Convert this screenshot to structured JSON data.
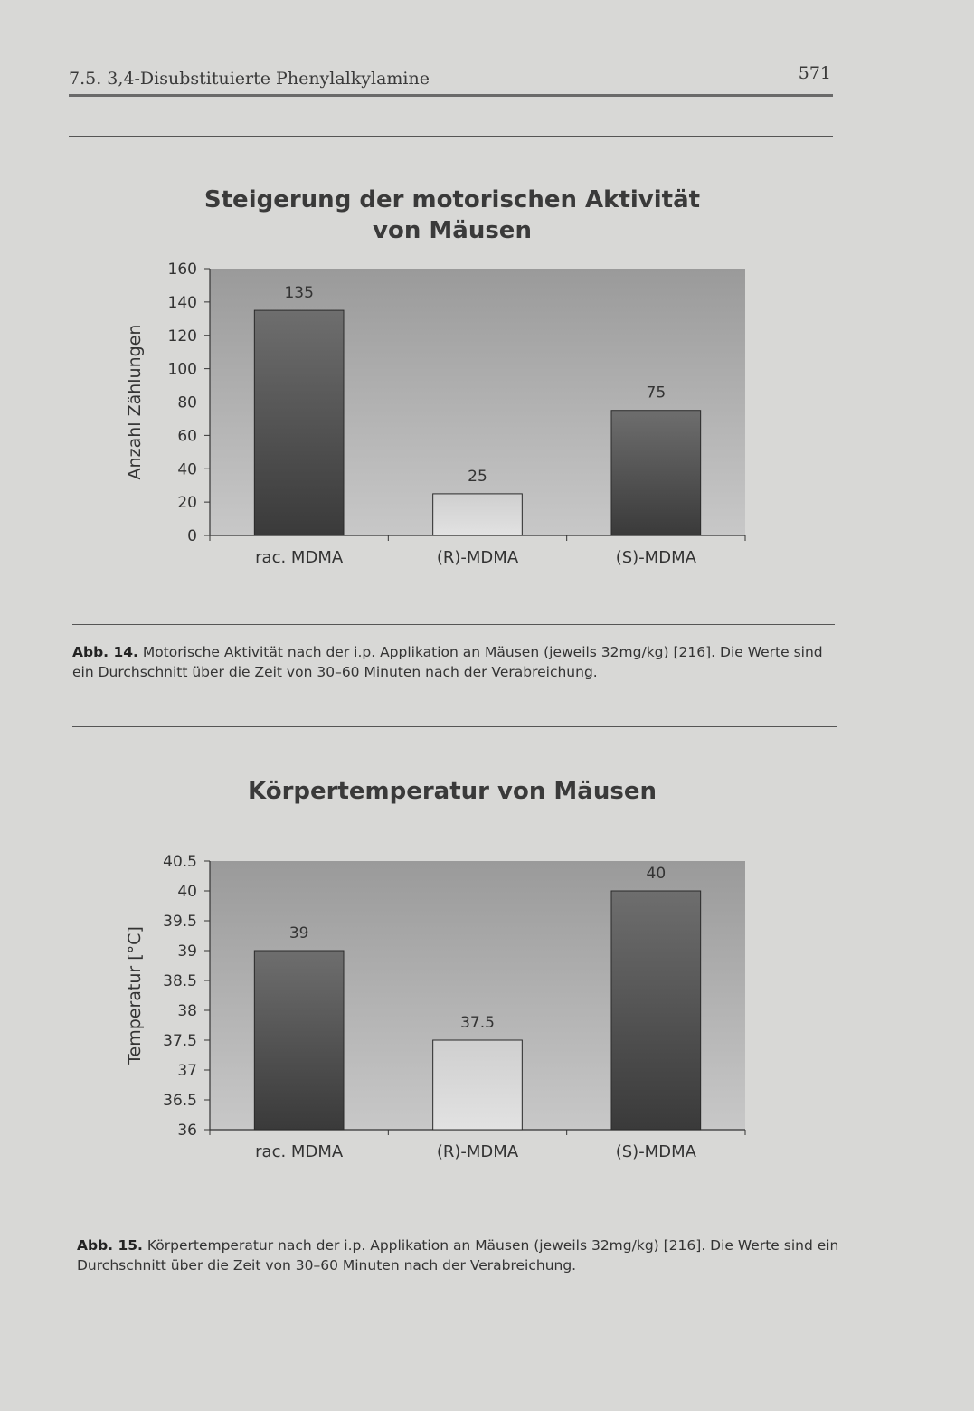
{
  "header": {
    "section": "7.5. 3,4-Disubstituierte Phenylalkylamine",
    "page_number": "571"
  },
  "colors": {
    "bar_dark": "#3a3a3a",
    "bar_light": "#e2e2e2",
    "plot_bg_top": "#9a9a9a",
    "plot_bg_bottom": "#c8c8c8"
  },
  "chart_data": [
    {
      "type": "bar",
      "title_line1": "Steigerung der motorischen Aktivität",
      "title_line2": "von Mäusen",
      "ylabel": "Anzahl Zählungen",
      "xlabel": "",
      "categories": [
        "rac. MDMA",
        "(R)-MDMA",
        "(S)-MDMA"
      ],
      "values": [
        135,
        25,
        75
      ],
      "data_labels": [
        "135",
        "25",
        "75"
      ],
      "ylim": [
        0,
        160
      ],
      "yticks": [
        "0",
        "20",
        "40",
        "60",
        "80",
        "100",
        "120",
        "140",
        "160"
      ],
      "grid": false,
      "legend": "none"
    },
    {
      "type": "bar",
      "title_line1": "Körpertemperatur von Mäusen",
      "ylabel": "Temperatur [°C]",
      "xlabel": "",
      "categories": [
        "rac. MDMA",
        "(R)-MDMA",
        "(S)-MDMA"
      ],
      "values": [
        39,
        37.5,
        40
      ],
      "data_labels": [
        "39",
        "37.5",
        "40"
      ],
      "ylim": [
        36,
        40.5
      ],
      "yticks": [
        "36",
        "36.5",
        "37",
        "37.5",
        "38",
        "38.5",
        "39",
        "39.5",
        "40",
        "40.5"
      ],
      "grid": false,
      "legend": "none"
    }
  ],
  "captions": [
    {
      "label": "Abb. 14.",
      "text": "Motorische Aktivität nach der i.p. Applikation an Mäusen (jeweils 32mg/kg) [216]. Die Werte sind ein Durchschnitt über die Zeit von 30–60 Minuten nach der Verabreichung."
    },
    {
      "label": "Abb. 15.",
      "text": "Körpertemperatur nach der i.p. Applikation an Mäusen (jeweils 32mg/kg) [216]. Die Werte sind ein Durchschnitt über die Zeit von 30–60 Minuten nach der Verabreichung."
    }
  ]
}
